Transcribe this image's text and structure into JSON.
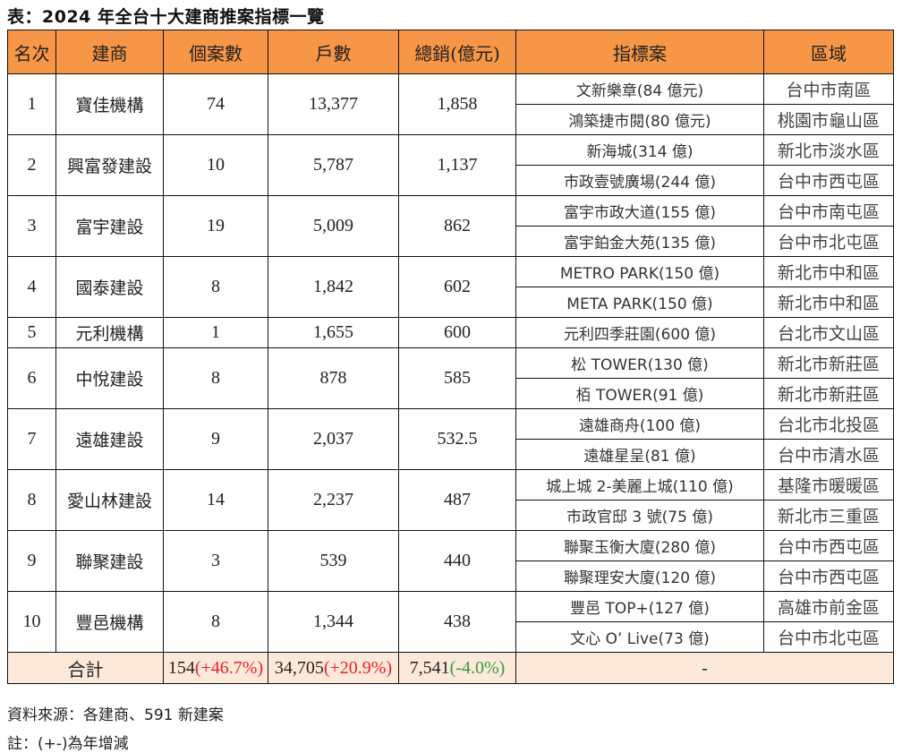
{
  "title": "表：2024 年全台十大建商推案指標一覽",
  "headers": {
    "rank": "名次",
    "developer": "建商",
    "cases": "個案數",
    "units": "戶數",
    "sales": "總銷(億元)",
    "project": "指標案",
    "region": "區域"
  },
  "rows": [
    {
      "rank": "1",
      "developer": "寶佳機構",
      "cases": "74",
      "units": "13,377",
      "sales": "1,858",
      "projects": [
        {
          "name": "文新樂章(84 億元)",
          "region": "台中市南區"
        },
        {
          "name": "鴻築捷市閱(80 億元)",
          "region": "桃園市龜山區"
        }
      ]
    },
    {
      "rank": "2",
      "developer": "興富發建設",
      "cases": "10",
      "units": "5,787",
      "sales": "1,137",
      "projects": [
        {
          "name": "新海城(314 億)",
          "region": "新北市淡水區"
        },
        {
          "name": "市政壹號廣場(244 億)",
          "region": "台中市西屯區"
        }
      ]
    },
    {
      "rank": "3",
      "developer": "富宇建設",
      "cases": "19",
      "units": "5,009",
      "sales": "862",
      "projects": [
        {
          "name": "富宇市政大道(155 億)",
          "region": "台中市南屯區"
        },
        {
          "name": "富宇鉑金大苑(135 億)",
          "region": "台中市北屯區"
        }
      ]
    },
    {
      "rank": "4",
      "developer": "國泰建設",
      "cases": "8",
      "units": "1,842",
      "sales": "602",
      "projects": [
        {
          "name": "METRO PARK(150 億)",
          "region": "新北市中和區"
        },
        {
          "name": "META PARK(150 億)",
          "region": "新北市中和區"
        }
      ]
    },
    {
      "rank": "5",
      "developer": "元利機構",
      "cases": "1",
      "units": "1,655",
      "sales": "600",
      "projects": [
        {
          "name": "元利四季莊園(600 億)",
          "region": "台北市文山區"
        }
      ]
    },
    {
      "rank": "6",
      "developer": "中悅建設",
      "cases": "8",
      "units": "878",
      "sales": "585",
      "projects": [
        {
          "name": "松 TOWER(130 億)",
          "region": "新北市新莊區"
        },
        {
          "name": "栢 TOWER(91 億)",
          "region": "新北市新莊區"
        }
      ]
    },
    {
      "rank": "7",
      "developer": "遠雄建設",
      "cases": "9",
      "units": "2,037",
      "sales": "532.5",
      "projects": [
        {
          "name": "遠雄商舟(100 億)",
          "region": "台北市北投區"
        },
        {
          "name": "遠雄星呈(81 億)",
          "region": "台中市清水區"
        }
      ]
    },
    {
      "rank": "8",
      "developer": "愛山林建設",
      "cases": "14",
      "units": "2,237",
      "sales": "487",
      "projects": [
        {
          "name": "城上城 2-美麗上城(110 億)",
          "region": "基隆市暖暖區"
        },
        {
          "name": "市政官邸 3 號(75 億)",
          "region": "新北市三重區"
        }
      ]
    },
    {
      "rank": "9",
      "developer": "聯聚建設",
      "cases": "3",
      "units": "539",
      "sales": "440",
      "projects": [
        {
          "name": "聯聚玉衡大廈(280 億)",
          "region": "台中市西屯區"
        },
        {
          "name": "聯聚理安大廈(120 億)",
          "region": "台中市西屯區"
        }
      ]
    },
    {
      "rank": "10",
      "developer": "豐邑機構",
      "cases": "8",
      "units": "1,344",
      "sales": "438",
      "projects": [
        {
          "name": "豐邑 TOP+(127 億)",
          "region": "高雄市前金區"
        },
        {
          "name": "文心 O’ Live(73 億)",
          "region": "台中市北屯區"
        }
      ]
    }
  ],
  "total": {
    "label": "合計",
    "cases": "154",
    "cases_change": "(+46.7%)",
    "units": "34,705",
    "units_change": "(+20.9%)",
    "sales": "7,541",
    "sales_change": "(-4.0%)",
    "project": "-"
  },
  "notes": {
    "source": "資料來源：各建商、591 新建案",
    "remark": "註：(+-)為年增減"
  },
  "colors": {
    "header_bg": "#F79646",
    "total_bg": "#FDE9D9",
    "positive": "#e8202a",
    "negative": "#2e9e3e"
  }
}
